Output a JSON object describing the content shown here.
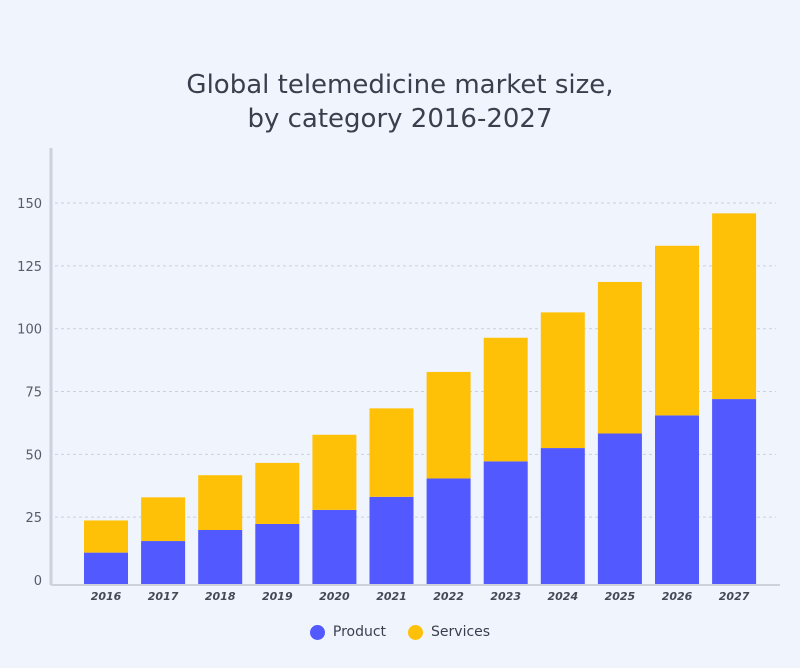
{
  "chart_data": {
    "type": "bar",
    "stacked": true,
    "title_lines": [
      "Global telemedicine market size,",
      "by category 2016-2027"
    ],
    "categories": [
      "2016",
      "2017",
      "2018",
      "2019",
      "2020",
      "2021",
      "2022",
      "2023",
      "2024",
      "2025",
      "2026",
      "2027"
    ],
    "series": [
      {
        "name": "Product",
        "color": "#5159ff",
        "values": [
          10.9,
          15.5,
          19.9,
          22.3,
          27.9,
          33.1,
          40.4,
          47.2,
          52.5,
          58.3,
          65.5,
          72.0
        ]
      },
      {
        "name": "Services",
        "color": "#ffc107",
        "values": [
          12.8,
          17.4,
          21.8,
          24.3,
          29.9,
          35.2,
          42.4,
          49.2,
          54.0,
          60.3,
          67.5,
          73.9
        ]
      }
    ],
    "yticks": [
      "0",
      "25",
      "50",
      "75",
      "100",
      "125",
      "150"
    ],
    "ylim": [
      0,
      170
    ],
    "grid": true,
    "legend": "bottom"
  }
}
